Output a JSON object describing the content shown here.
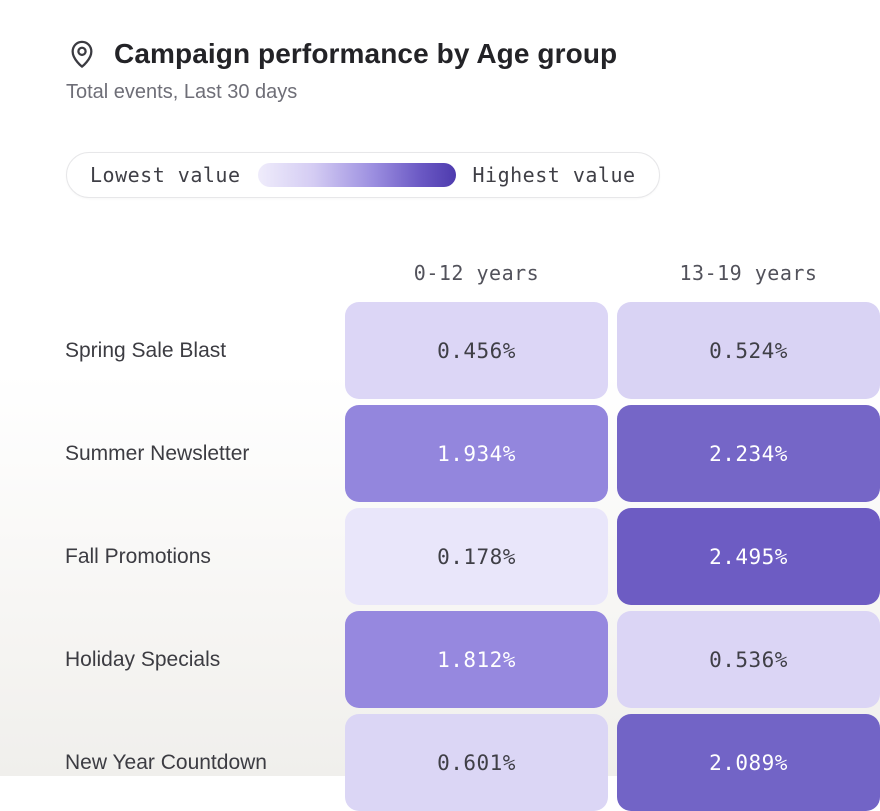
{
  "header": {
    "title": "Campaign performance by Age group",
    "subtitle": "Total events, Last 30 days",
    "icon": "location-pin-icon",
    "title_color": "#232327"
  },
  "legend": {
    "low_label": "Lowest value",
    "high_label": "Highest value",
    "gradient_start": "#EFECFB",
    "gradient_end": "#4E3BAE"
  },
  "chart_data": {
    "type": "heatmap",
    "title": "Campaign performance by Age group",
    "subtitle": "Total events, Last 30 days",
    "unit": "%",
    "legend_position": "top",
    "columns": [
      "0-12 years",
      "13-19 years"
    ],
    "rows": [
      "Spring Sale Blast",
      "Summer Newsletter",
      "Fall Promotions",
      "Holiday Specials",
      "New Year Countdown"
    ],
    "series": [
      {
        "name": "Spring Sale Blast",
        "values": [
          0.456,
          0.524
        ]
      },
      {
        "name": "Summer Newsletter",
        "values": [
          1.934,
          2.234
        ]
      },
      {
        "name": "Fall Promotions",
        "values": [
          0.178,
          2.495
        ]
      },
      {
        "name": "Holiday Specials",
        "values": [
          1.812,
          0.536
        ]
      },
      {
        "name": "New Year Countdown",
        "values": [
          0.601,
          2.089
        ]
      }
    ],
    "cells": [
      [
        {
          "label": "0.456%",
          "bg": "#DCD6F6",
          "fg": "#3F3F46"
        },
        {
          "label": "0.524%",
          "bg": "#D9D3F4",
          "fg": "#3F3F46"
        }
      ],
      [
        {
          "label": "1.934%",
          "bg": "#9386DD",
          "fg": "#FFFFFF"
        },
        {
          "label": "2.234%",
          "bg": "#7566C7",
          "fg": "#FFFFFF"
        }
      ],
      [
        {
          "label": "0.178%",
          "bg": "#E9E6FA",
          "fg": "#3F3F46"
        },
        {
          "label": "2.495%",
          "bg": "#6D5CC3",
          "fg": "#FFFFFF"
        }
      ],
      [
        {
          "label": "1.812%",
          "bg": "#9688DF",
          "fg": "#FFFFFF"
        },
        {
          "label": "0.536%",
          "bg": "#DBD5F5",
          "fg": "#3F3F46"
        }
      ],
      [
        {
          "label": "0.601%",
          "bg": "#DBD6F5",
          "fg": "#3F3F46"
        },
        {
          "label": "2.089%",
          "bg": "#7264C6",
          "fg": "#FFFFFF"
        }
      ]
    ]
  }
}
